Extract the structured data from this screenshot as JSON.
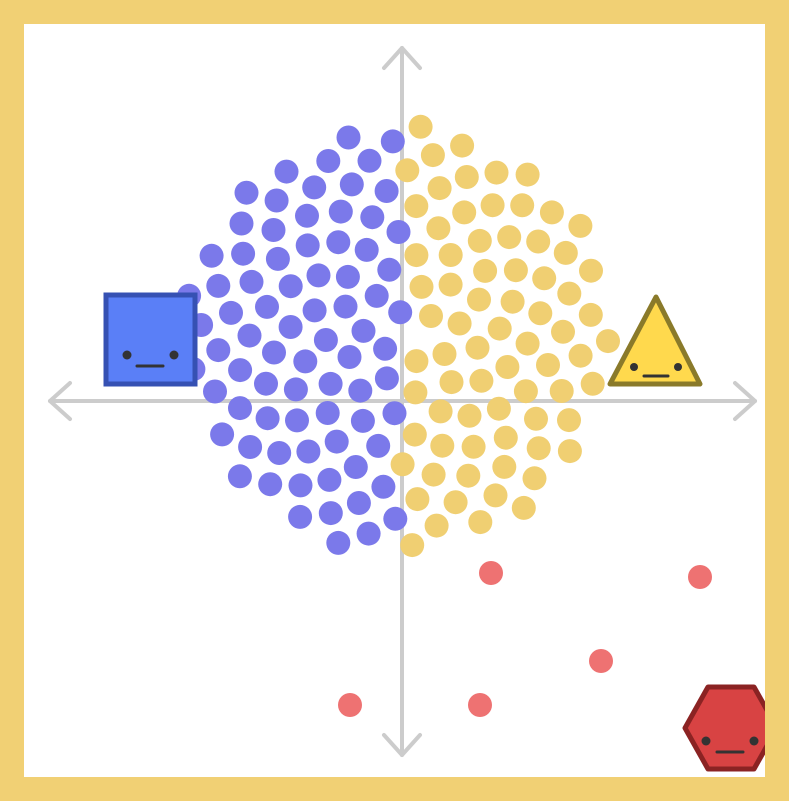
{
  "colors": {
    "frame": "#F1D074",
    "background": "#FFFFFF",
    "axis": "#CCCCCC",
    "blue_dot": "#7B79EA",
    "yellow_dot": "#F0CF72",
    "red_dot": "#EE7272",
    "square_fill": "#5A7FF7",
    "square_stroke": "#3651B3",
    "triangle_fill": "#FFD94D",
    "triangle_stroke": "#8A7A2A",
    "hexagon_fill": "#D84343",
    "hexagon_stroke": "#8B2323",
    "face": "#333333"
  },
  "characters": [
    {
      "id": "square",
      "shape": "square",
      "expression": "neutral"
    },
    {
      "id": "triangle",
      "shape": "triangle",
      "expression": "neutral"
    },
    {
      "id": "hexagon",
      "shape": "hexagon",
      "expression": "neutral"
    }
  ],
  "dot_groups": [
    {
      "group": "blue",
      "approx_count": 60
    },
    {
      "group": "yellow",
      "approx_count": 75
    },
    {
      "group": "red",
      "approx_count": 7
    }
  ]
}
